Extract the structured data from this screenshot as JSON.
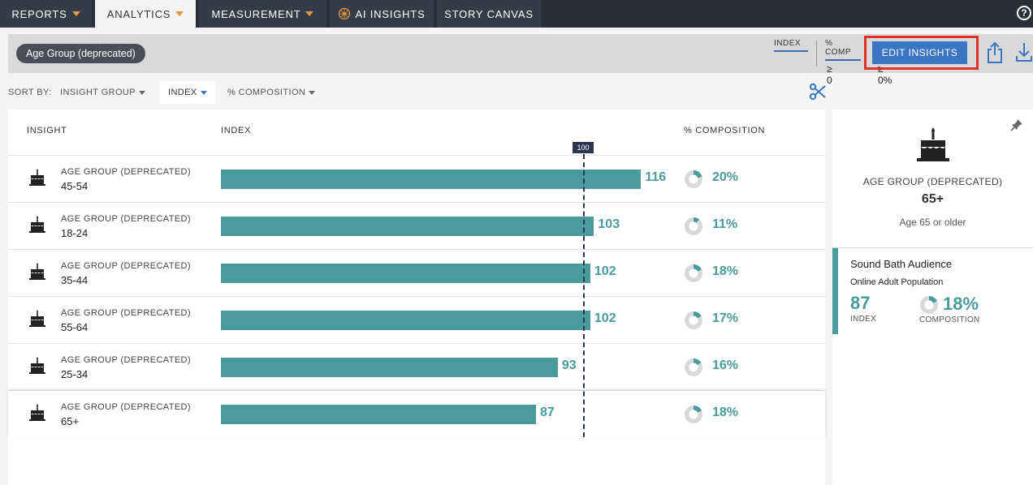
{
  "nav": {
    "tabs": [
      {
        "label": "REPORTS",
        "caret": true
      },
      {
        "label": "ANALYTICS",
        "caret": true,
        "active": true
      },
      {
        "label": "MEASUREMENT",
        "caret": true
      },
      {
        "label": "AI INSIGHTS",
        "icon": "ai-sparkle-icon"
      },
      {
        "label": "STORY CANVAS"
      }
    ],
    "help_icon": "help-icon"
  },
  "filter": {
    "chip": "Age Group (deprecated)",
    "index_label": "INDEX",
    "index_value": "≥ 0",
    "comp_label": "% COMP",
    "comp_value": "≥ 0%",
    "edit_button": "EDIT INSIGHTS"
  },
  "sort": {
    "label": "SORT BY:",
    "options": [
      {
        "label": "INSIGHT GROUP"
      },
      {
        "label": "INDEX",
        "active": true
      },
      {
        "label": "% COMPOSITION"
      }
    ]
  },
  "table": {
    "headers": {
      "insight": "INSIGHT",
      "index": "INDEX",
      "composition": "% COMPOSITION"
    },
    "reference_index": 100,
    "reference_label": "100",
    "rows": [
      {
        "category": "AGE GROUP (DEPRECATED)",
        "value": "45-54",
        "index": 116,
        "index_label": "116",
        "composition": 20,
        "composition_label": "20%"
      },
      {
        "category": "AGE GROUP (DEPRECATED)",
        "value": "18-24",
        "index": 103,
        "index_label": "103",
        "composition": 11,
        "composition_label": "11%"
      },
      {
        "category": "AGE GROUP (DEPRECATED)",
        "value": "35-44",
        "index": 102,
        "index_label": "102",
        "composition": 18,
        "composition_label": "18%"
      },
      {
        "category": "AGE GROUP (DEPRECATED)",
        "value": "55-64",
        "index": 102,
        "index_label": "102",
        "composition": 17,
        "composition_label": "17%"
      },
      {
        "category": "AGE GROUP (DEPRECATED)",
        "value": "25-34",
        "index": 93,
        "index_label": "93",
        "composition": 16,
        "composition_label": "16%"
      },
      {
        "category": "AGE GROUP (DEPRECATED)",
        "value": "65+",
        "index": 87,
        "index_label": "87",
        "composition": 18,
        "composition_label": "18%"
      }
    ]
  },
  "panel": {
    "category": "AGE GROUP (DEPRECATED)",
    "value": "65+",
    "description": "Age 65 or older",
    "audience": {
      "name": "Sound Bath Audience",
      "population": "Online Adult Population",
      "index": "87",
      "index_label": "INDEX",
      "composition": "18%",
      "composition_value": 18,
      "composition_label": "COMPOSITION"
    }
  },
  "colors": {
    "accent": "#4a9b9b",
    "nav_bg": "#2b2f3b",
    "button": "#3a76c4",
    "highlight": "#e03127"
  }
}
